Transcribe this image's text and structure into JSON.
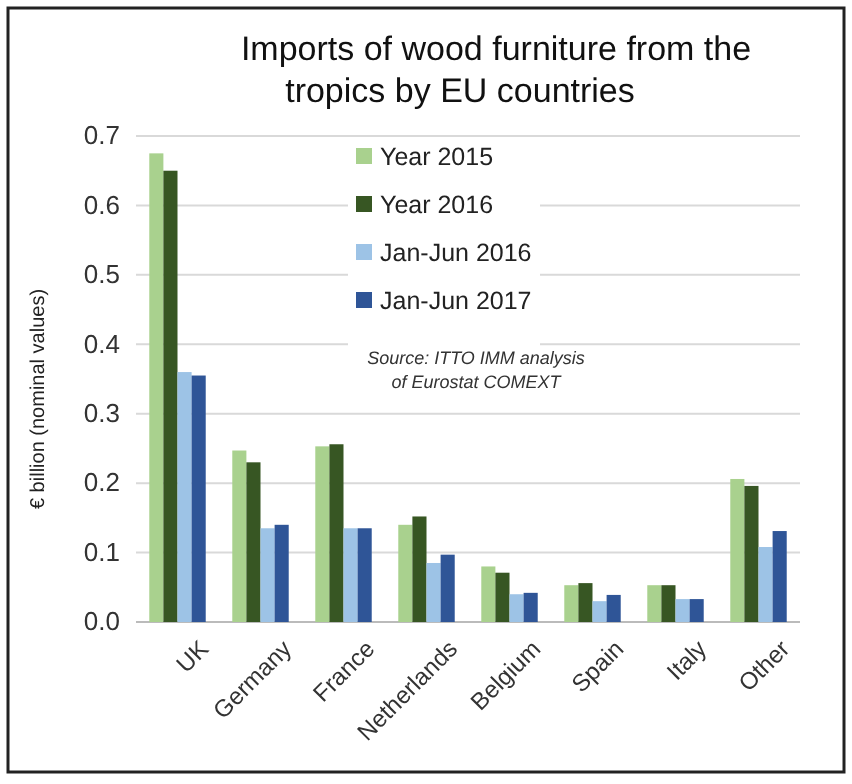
{
  "chart_data": {
    "type": "bar",
    "title": "Imports of wood furniture from the tropics by EU countries",
    "ylabel": "€ billion (nominal values)",
    "categories": [
      "UK",
      "Germany",
      "France",
      "Netherlands",
      "Belgium",
      "Spain",
      "Italy",
      "Other"
    ],
    "series": [
      {
        "name": "Year 2015",
        "color": "#a9d18e",
        "values": [
          0.675,
          0.247,
          0.253,
          0.14,
          0.08,
          0.053,
          0.053,
          0.206
        ]
      },
      {
        "name": "Year 2016",
        "color": "#375623",
        "values": [
          0.65,
          0.23,
          0.256,
          0.152,
          0.071,
          0.056,
          0.053,
          0.196
        ]
      },
      {
        "name": "Jan-Jun 2016",
        "color": "#9dc3e6",
        "values": [
          0.36,
          0.135,
          0.135,
          0.085,
          0.04,
          0.03,
          0.033,
          0.108
        ]
      },
      {
        "name": "Jan-Jun 2017",
        "color": "#2f5597",
        "values": [
          0.355,
          0.14,
          0.135,
          0.097,
          0.042,
          0.039,
          0.033,
          0.131
        ]
      }
    ],
    "ylim": [
      0,
      0.7
    ],
    "yticks": [
      {
        "value": 0,
        "label": "0.0"
      },
      {
        "value": 0.1,
        "label": "0.1"
      },
      {
        "value": 0.2,
        "label": "0.2"
      },
      {
        "value": 0.3,
        "label": "0.3"
      },
      {
        "value": 0.4,
        "label": "0.4"
      },
      {
        "value": 0.5,
        "label": "0.5"
      },
      {
        "value": 0.6,
        "label": "0.6"
      },
      {
        "value": 0.7,
        "label": "0.7"
      }
    ],
    "grid": "y",
    "legend": "top",
    "annotations": [
      "Source: ITTO IMM analysis of Eurostat COMEXT"
    ]
  }
}
